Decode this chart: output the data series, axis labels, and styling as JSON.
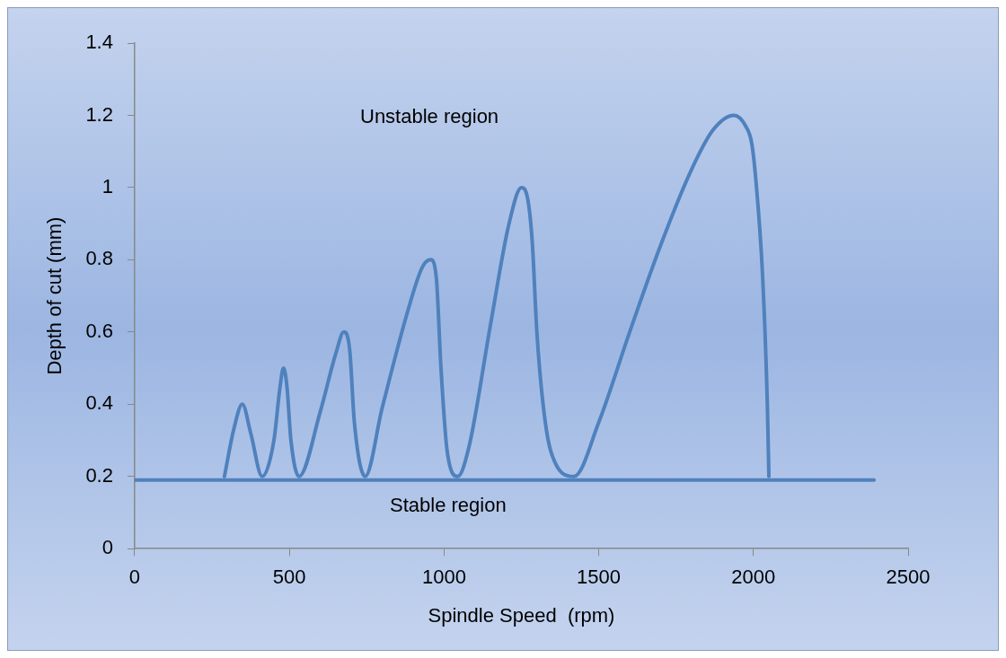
{
  "chart_data": {
    "type": "line",
    "xlabel": "Spindle Speed  (rpm)",
    "ylabel": "Depth of cut (mm)",
    "xlim": [
      0,
      2500
    ],
    "xticks": [
      0,
      500,
      1000,
      1500,
      2000,
      2500
    ],
    "ylim": [
      0,
      1.4
    ],
    "yticks": [
      0,
      0.2,
      0.4,
      0.6,
      0.8,
      1,
      1.2,
      1.4
    ],
    "grid": false,
    "legend": false,
    "marker": "none",
    "line_style": "solid",
    "series": [
      {
        "color": "#4f81bd",
        "x": [
          290,
          320,
          348,
          375,
          412,
          450,
          470,
          481,
          492,
          505,
          531,
          600,
          650,
          676,
          695,
          710,
          745,
          800,
          880,
          930,
          957,
          975,
          990,
          1010,
          1044,
          1080,
          1150,
          1210,
          1250,
          1270,
          1285,
          1300,
          1320,
          1345,
          1420,
          1500,
          1600,
          1700,
          1800,
          1870,
          1937,
          1975,
          1995,
          2010,
          2030,
          2045,
          2050
        ],
        "values": [
          0.2,
          0.33,
          0.4,
          0.32,
          0.2,
          0.3,
          0.45,
          0.5,
          0.45,
          0.3,
          0.2,
          0.38,
          0.54,
          0.6,
          0.55,
          0.35,
          0.2,
          0.39,
          0.65,
          0.78,
          0.8,
          0.75,
          0.5,
          0.27,
          0.2,
          0.28,
          0.62,
          0.9,
          1.0,
          0.97,
          0.85,
          0.6,
          0.4,
          0.27,
          0.2,
          0.35,
          0.6,
          0.84,
          1.05,
          1.16,
          1.2,
          1.17,
          1.12,
          1.0,
          0.75,
          0.4,
          0.2
        ]
      },
      {
        "color": "#4f81bd",
        "x": [
          0,
          2390
        ],
        "values": [
          0.19,
          0.19
        ]
      }
    ],
    "annotations": [
      "Unstable region",
      "Stable region"
    ]
  }
}
